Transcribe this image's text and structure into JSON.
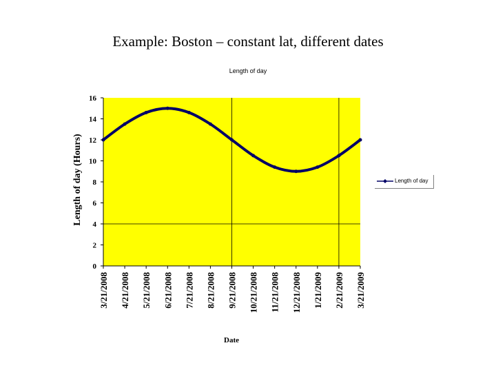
{
  "slide": {
    "title": "Example: Boston – constant lat, different dates"
  },
  "chart_data": {
    "type": "line",
    "title": "Length of day",
    "xlabel": "Date",
    "ylabel": "Length of day (Hours)",
    "ylim": [
      0,
      16
    ],
    "yticks": [
      0,
      2,
      4,
      6,
      8,
      10,
      12,
      14,
      16
    ],
    "categories": [
      "3/21/2008",
      "4/21/2008",
      "5/21/2008",
      "6/21/2008",
      "7/21/2008",
      "8/21/2008",
      "9/21/2008",
      "10/21/2008",
      "11/21/2008",
      "12/21/2008",
      "1/21/2009",
      "2/21/2009",
      "3/21/2009"
    ],
    "series": [
      {
        "name": "Length of day",
        "color": "#000066",
        "values": [
          12.0,
          13.5,
          14.6,
          15.0,
          14.6,
          13.5,
          12.0,
          10.5,
          9.4,
          9.0,
          9.4,
          10.5,
          12.0
        ]
      }
    ],
    "plot_background": "#ffff00",
    "gridlines": {
      "horizontal_at": [
        4
      ],
      "vertical_at": [
        "9/21/2008",
        "2/21/2009"
      ]
    },
    "legend_position": "right"
  }
}
